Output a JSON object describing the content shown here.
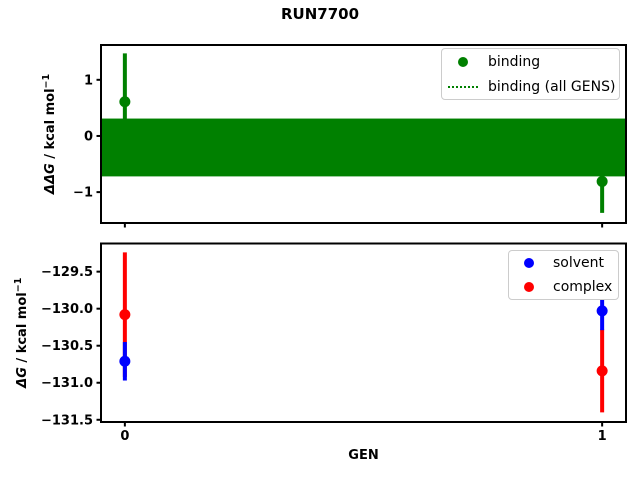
{
  "figure": {
    "suptitle": "RUN7700",
    "background": "#ffffff",
    "xlabel": "GEN"
  },
  "chart_data": [
    {
      "type": "scatter",
      "title": "RUN7700",
      "xlabel": "",
      "ylabel": "ΔΔG / kcal mol⁻¹",
      "ylabel_parts": {
        "italic": "ΔΔG",
        "normal": " / kcal mol",
        "sup": "−1"
      },
      "xlim": [
        -0.05,
        1.05
      ],
      "ylim": [
        -1.55,
        1.62
      ],
      "grid": false,
      "yticks": [
        {
          "v": 1,
          "label": "1"
        },
        {
          "v": 0,
          "label": "0"
        },
        {
          "v": -1,
          "label": "−1"
        }
      ],
      "xticks": [
        {
          "v": 0,
          "label": ""
        },
        {
          "v": 1,
          "label": ""
        }
      ],
      "series": [
        {
          "name": "binding",
          "color": "#008000",
          "marker": "circle",
          "points": [
            {
              "x": 0,
              "y": 0.61,
              "err": 0.86
            },
            {
              "x": 1,
              "y": -0.81,
              "err": 0.56
            }
          ]
        }
      ],
      "band": {
        "name": "binding (all GENS)",
        "color": "#008000",
        "center": -0.2,
        "lo": -0.72,
        "hi": 0.31,
        "linestyle": "dotted"
      },
      "legend": {
        "position": "upper right",
        "items": [
          {
            "label": "binding",
            "color": "#008000",
            "glyph": "dot"
          },
          {
            "label": "binding (all GENS)",
            "color": "#008000",
            "glyph": "dotted-line"
          }
        ]
      }
    },
    {
      "type": "scatter",
      "title": "",
      "xlabel": "GEN",
      "ylabel": "ΔG / kcal mol⁻¹",
      "ylabel_parts": {
        "italic": "ΔG",
        "normal": " / kcal mol",
        "sup": "−1"
      },
      "xlim": [
        -0.05,
        1.05
      ],
      "ylim": [
        -131.53,
        -129.12
      ],
      "grid": false,
      "yticks": [
        {
          "v": -129.5,
          "label": "−129.5"
        },
        {
          "v": -130.0,
          "label": "−130.0"
        },
        {
          "v": -130.5,
          "label": "−130.5"
        },
        {
          "v": -131.0,
          "label": "−131.0"
        },
        {
          "v": -131.5,
          "label": "−131.5"
        }
      ],
      "xticks": [
        {
          "v": 0,
          "label": "0"
        },
        {
          "v": 1,
          "label": "1"
        }
      ],
      "series": [
        {
          "name": "solvent",
          "color": "#0000ff",
          "marker": "circle",
          "points": [
            {
              "x": 0,
              "y": -130.71,
              "err": 0.26
            },
            {
              "x": 1,
              "y": -130.03,
              "err": 0.26
            }
          ]
        },
        {
          "name": "complex",
          "color": "#ff0000",
          "marker": "circle",
          "points": [
            {
              "x": 0,
              "y": -130.08,
              "err": 0.84
            },
            {
              "x": 1,
              "y": -130.84,
              "err": 0.56
            }
          ]
        }
      ],
      "legend": {
        "position": "upper right",
        "items": [
          {
            "label": "solvent",
            "color": "#0000ff",
            "glyph": "dot"
          },
          {
            "label": "complex",
            "color": "#ff0000",
            "glyph": "dot"
          }
        ]
      }
    }
  ]
}
